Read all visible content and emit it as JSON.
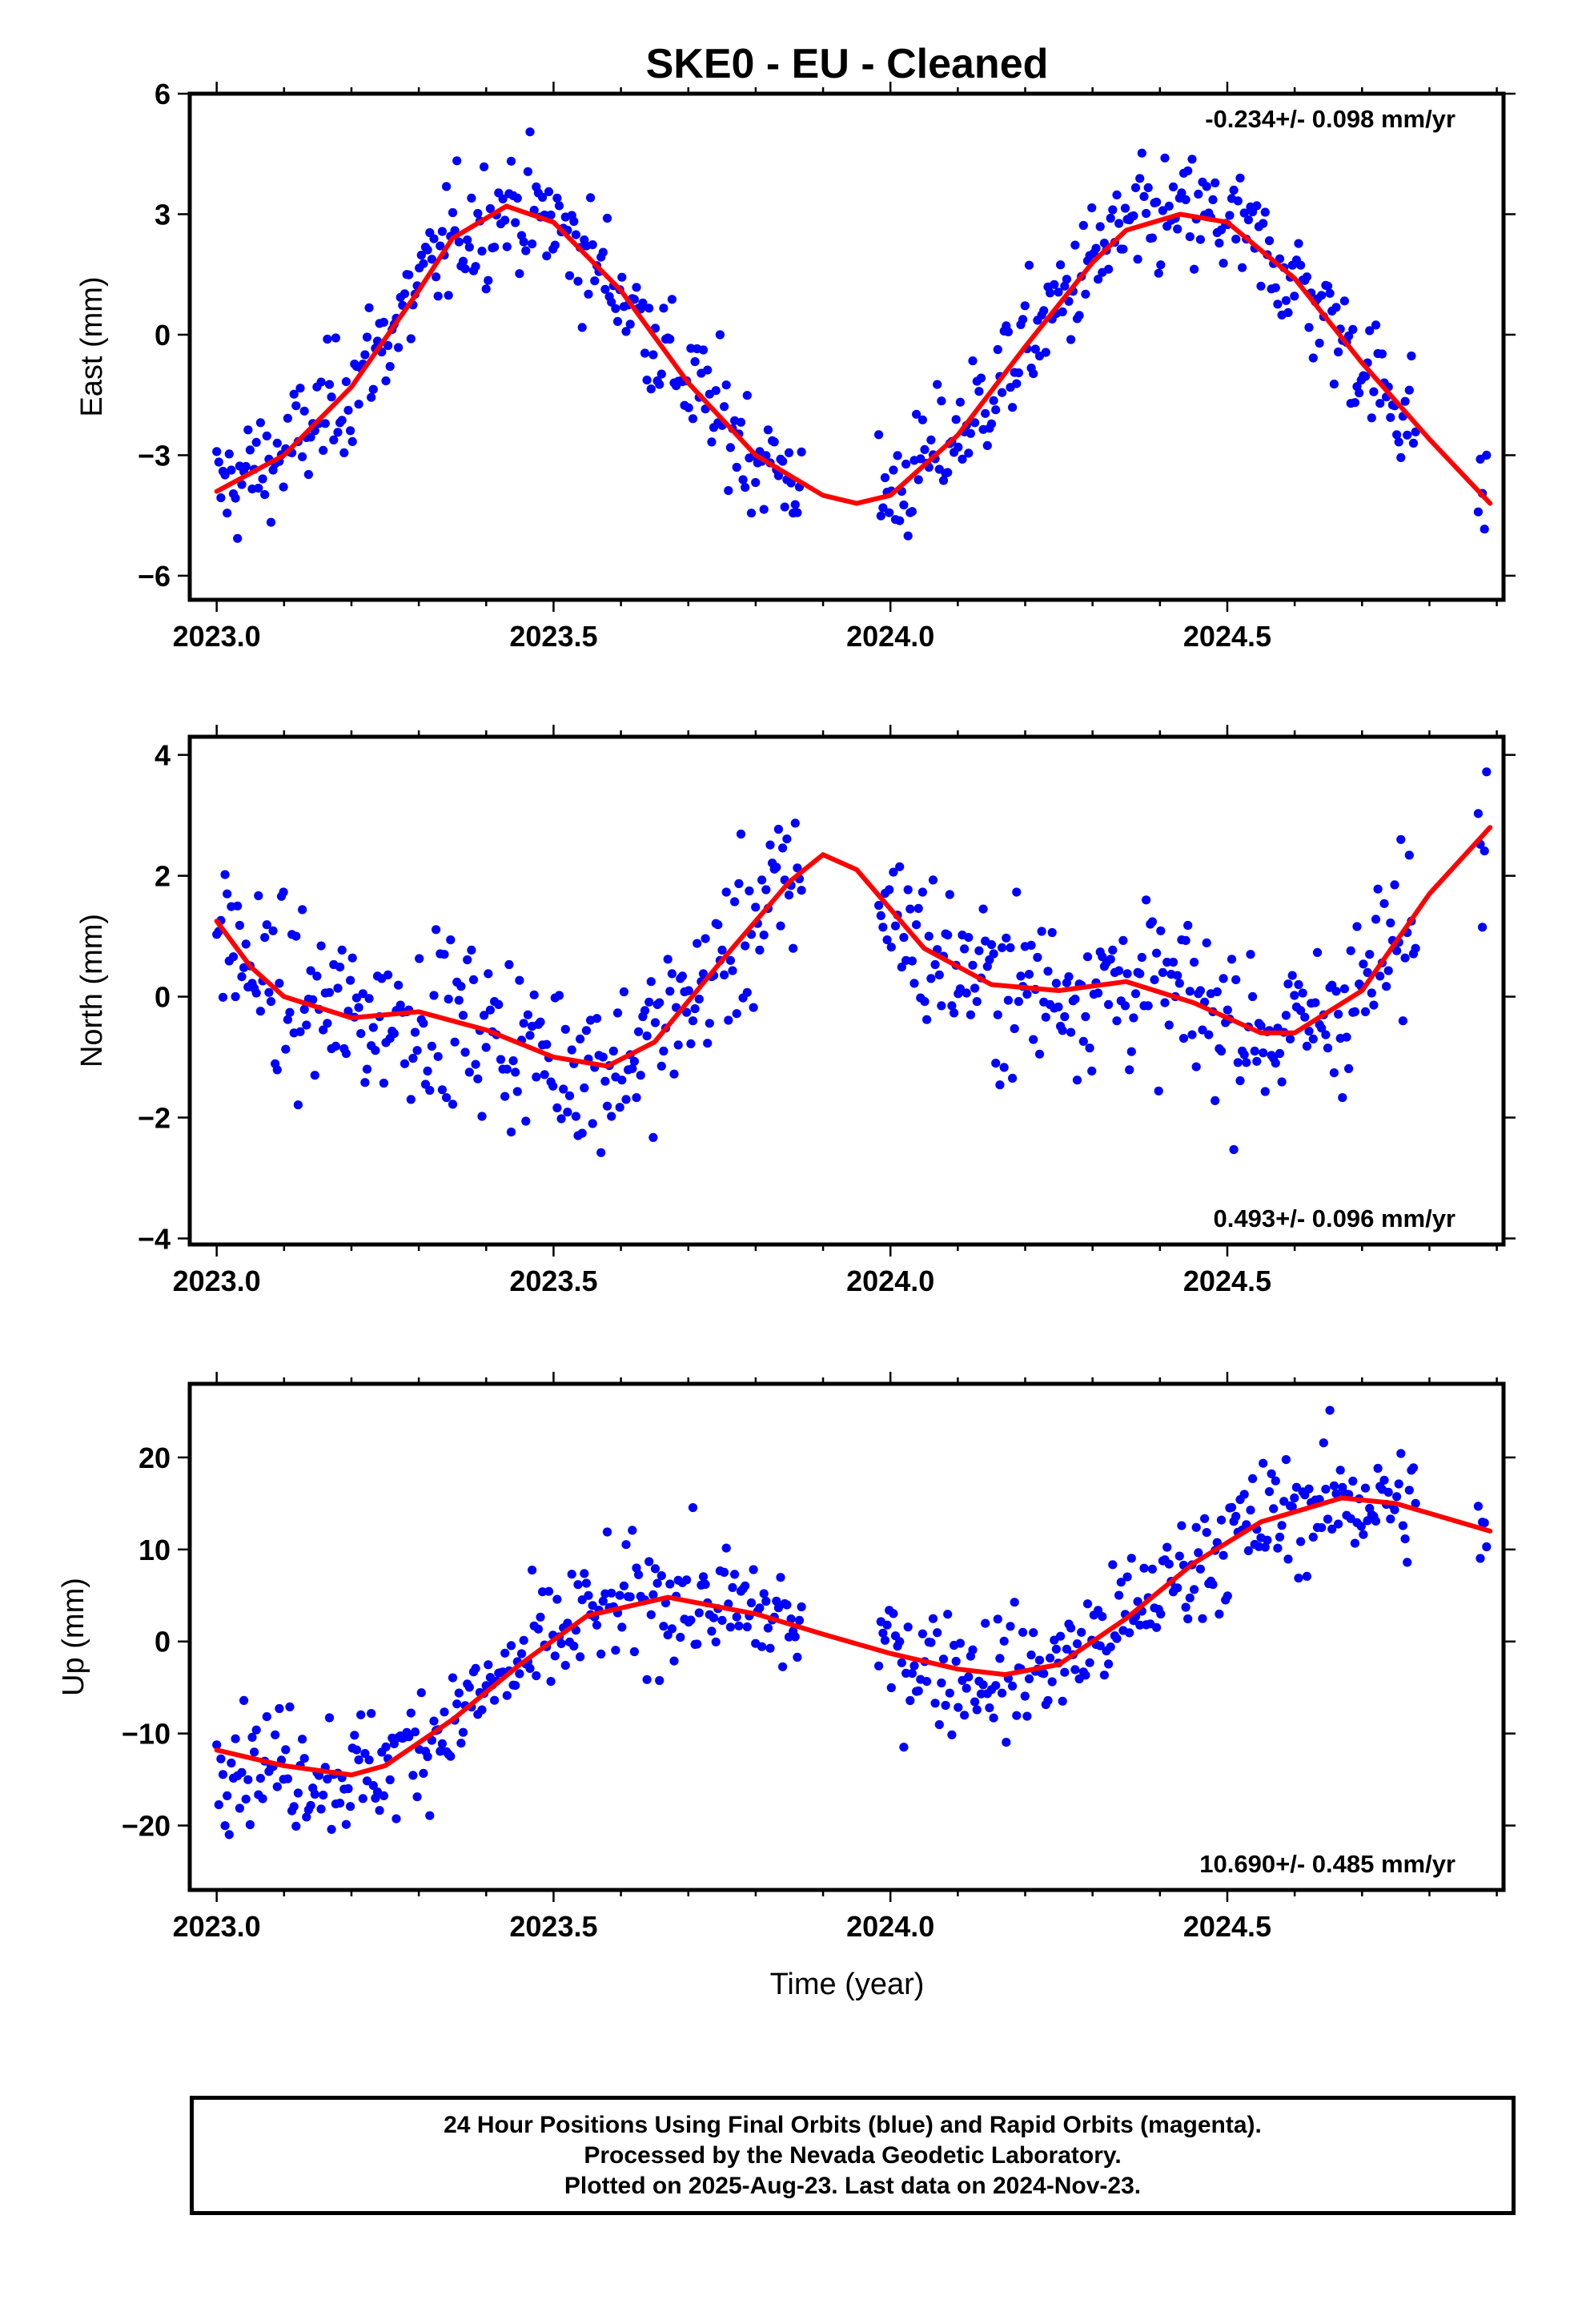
{
  "title": "SKE0  - EU - Cleaned",
  "xlabel": "Time (year)",
  "footer": {
    "line1": "24 Hour Positions Using Final Orbits (blue) and Rapid Orbits (magenta).",
    "line2": "Processed by the Nevada Geodetic Laboratory.",
    "line3": "Plotted on 2025-Aug-23. Last data on 2024-Nov-23."
  },
  "colors": {
    "final_orbits": "#0000ff",
    "fit_curve": "#ff0000",
    "frame": "#000000"
  },
  "chart_data": [
    {
      "type": "scatter",
      "ylabel": "East (mm)",
      "rate_text": "-0.234+/- 0.098 mm/yr",
      "xlim": [
        2022.96,
        2024.91
      ],
      "ylim": [
        -6.6,
        6.0
      ],
      "xticks": [
        2023.0,
        2023.5,
        2024.0,
        2024.5
      ],
      "xtick_labels": [
        "2023.0",
        "2023.5",
        "2024.0",
        "2024.5"
      ],
      "yticks": [
        -6,
        -3,
        0,
        3,
        6
      ],
      "ytick_labels": [
        "−6",
        "−3",
        "0",
        "3",
        "6"
      ],
      "fit": {
        "x": [
          2023.0,
          2023.1,
          2023.2,
          2023.3,
          2023.35,
          2023.43,
          2023.5,
          2023.6,
          2023.7,
          2023.8,
          2023.9,
          2023.95,
          2024.0,
          2024.1,
          2024.2,
          2024.3,
          2024.35,
          2024.43,
          2024.5,
          2024.6,
          2024.7,
          2024.8,
          2024.89
        ],
        "y": [
          -3.9,
          -3.0,
          -1.3,
          1.1,
          2.4,
          3.2,
          2.8,
          1.1,
          -1.2,
          -3.0,
          -4.0,
          -4.2,
          -4.0,
          -2.5,
          -0.3,
          1.8,
          2.6,
          3.0,
          2.8,
          1.4,
          -0.7,
          -2.6,
          -4.2
        ]
      },
      "points": {
        "x": [],
        "y": []
      }
    },
    {
      "type": "scatter",
      "ylabel": "North (mm)",
      "rate_text": "0.493+/- 0.096 mm/yr",
      "xlim": [
        2022.96,
        2024.91
      ],
      "ylim": [
        -4.1,
        4.3
      ],
      "xticks": [
        2023.0,
        2023.5,
        2024.0,
        2024.5
      ],
      "xtick_labels": [
        "2023.0",
        "2023.5",
        "2024.0",
        "2024.5"
      ],
      "yticks": [
        -4,
        -2,
        0,
        2,
        4
      ],
      "ytick_labels": [
        "−4",
        "−2",
        "0",
        "2",
        "4"
      ],
      "fit": {
        "x": [
          2023.0,
          2023.05,
          2023.1,
          2023.2,
          2023.3,
          2023.4,
          2023.5,
          2023.58,
          2023.65,
          2023.75,
          2023.85,
          2023.9,
          2023.95,
          2024.05,
          2024.15,
          2024.25,
          2024.35,
          2024.45,
          2024.55,
          2024.6,
          2024.7,
          2024.8,
          2024.89
        ],
        "y": [
          1.25,
          0.5,
          0.0,
          -0.35,
          -0.25,
          -0.55,
          -1.0,
          -1.15,
          -0.75,
          0.6,
          1.9,
          2.35,
          2.1,
          0.8,
          0.2,
          0.1,
          0.25,
          -0.1,
          -0.6,
          -0.6,
          0.1,
          1.7,
          2.8
        ]
      },
      "points": {
        "x": [],
        "y": []
      }
    },
    {
      "type": "scatter",
      "ylabel": "Up (mm)",
      "rate_text": "10.690+/- 0.485 mm/yr",
      "xlim": [
        2022.96,
        2024.91
      ],
      "ylim": [
        -27,
        28
      ],
      "xticks": [
        2023.0,
        2023.5,
        2024.0,
        2024.5
      ],
      "xtick_labels": [
        "2023.0",
        "2023.5",
        "2024.0",
        "2024.5"
      ],
      "yticks": [
        -20,
        -10,
        0,
        10,
        20
      ],
      "ytick_labels": [
        "−20",
        "−10",
        "0",
        "10",
        "20"
      ],
      "fit": {
        "x": [
          2023.0,
          2023.1,
          2023.2,
          2023.25,
          2023.35,
          2023.45,
          2023.55,
          2023.67,
          2023.8,
          2023.9,
          2024.0,
          2024.1,
          2024.17,
          2024.25,
          2024.35,
          2024.45,
          2024.55,
          2024.67,
          2024.75,
          2024.89
        ],
        "y": [
          -11.8,
          -13.5,
          -14.5,
          -13.5,
          -8.5,
          -2.5,
          2.8,
          4.8,
          3.0,
          0.8,
          -1.3,
          -3.0,
          -3.6,
          -2.5,
          2.5,
          8.5,
          13.0,
          15.6,
          15.0,
          12.0
        ]
      },
      "points": {
        "x": [],
        "y": []
      }
    }
  ]
}
